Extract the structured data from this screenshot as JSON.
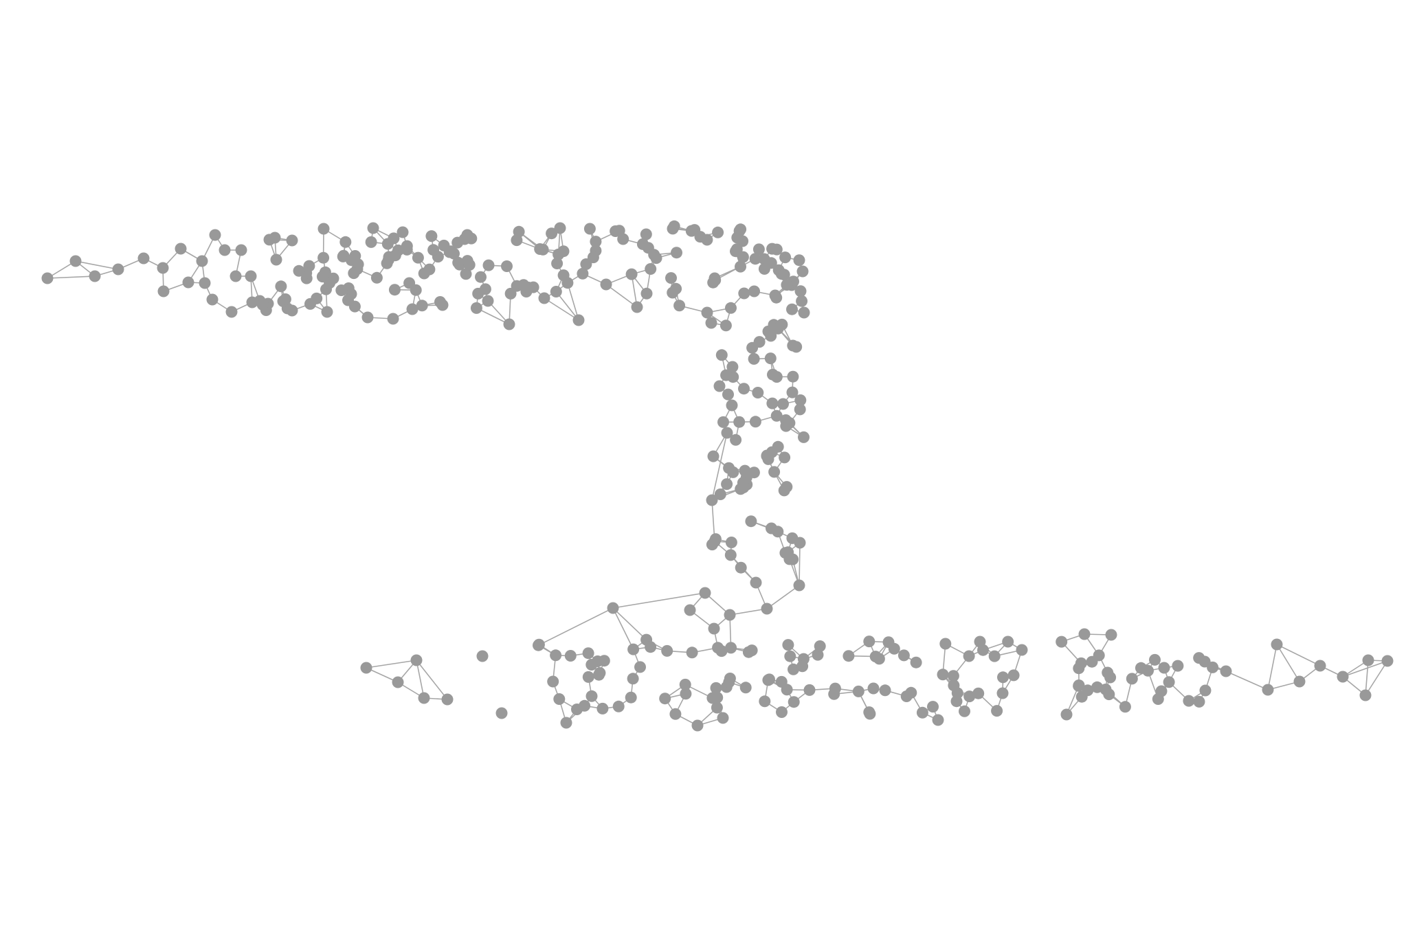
{
  "diagram": {
    "type": "network-graph",
    "description_visible_text": "",
    "colors": {
      "background": "#ffffff",
      "node": "#999999",
      "edge": "#a6a6a6"
    },
    "node_count_approx": 330
  }
}
